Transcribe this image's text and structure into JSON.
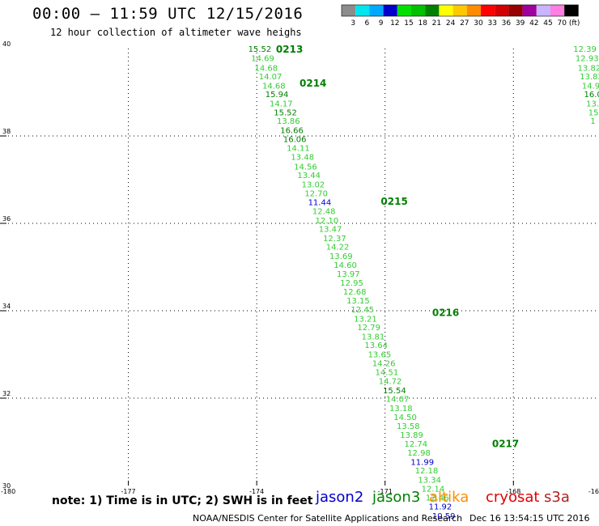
{
  "header": {
    "title": "00:00 – 11:59 UTC 12/15/2016",
    "subtitle": "12 hour collection of altimeter wave heighs"
  },
  "color_scale": {
    "unit": "(ft)",
    "steps": [
      {
        "label": "3",
        "color": "#8c8c8c"
      },
      {
        "label": "6",
        "color": "#00e5ee"
      },
      {
        "label": "9",
        "color": "#00a8ff"
      },
      {
        "label": "12",
        "color": "#0000cd"
      },
      {
        "label": "15",
        "color": "#00e000"
      },
      {
        "label": "18",
        "color": "#00c000"
      },
      {
        "label": "21",
        "color": "#008000"
      },
      {
        "label": "24",
        "color": "#ffff00"
      },
      {
        "label": "27",
        "color": "#ffc800"
      },
      {
        "label": "30",
        "color": "#ff8c00"
      },
      {
        "label": "33",
        "color": "#ff0000"
      },
      {
        "label": "36",
        "color": "#d20000"
      },
      {
        "label": "39",
        "color": "#960000"
      },
      {
        "label": "42",
        "color": "#a000a0"
      },
      {
        "label": "45",
        "color": "#c8b4ff"
      },
      {
        "label": "70",
        "color": "#ff7ee0"
      },
      {
        "label": "",
        "color": "#000000"
      }
    ]
  },
  "map": {
    "lon_range": [
      -180,
      -166
    ],
    "lat_range": [
      30,
      40
    ],
    "lon_ticks": [
      "-180",
      "-177",
      "-174",
      "-171",
      "-168",
      "-16"
    ],
    "lat_ticks": [
      "30",
      "32",
      "34",
      "36",
      "38",
      "40"
    ]
  },
  "colors": {
    "jason2": "#0000cd",
    "jason3": "#008000",
    "jason3_light": "#33cc33",
    "altika": "#ff8c00",
    "cryosat": "#e00000",
    "s3a": "#b22222"
  },
  "track": {
    "time_labels": [
      {
        "text": "0213",
        "lon": -173.55,
        "lat": 39.98
      },
      {
        "text": "0214",
        "lon": -173.0,
        "lat": 39.2
      },
      {
        "text": "0215",
        "lon": -171.1,
        "lat": 36.5
      },
      {
        "text": "0216",
        "lon": -169.9,
        "lat": 33.95
      },
      {
        "text": "0217",
        "lon": -168.5,
        "lat": 30.95
      }
    ],
    "observations": [
      {
        "v": "15.52",
        "lon": -174.2,
        "lat": 39.98,
        "s": "j3d"
      },
      {
        "v": "14.69",
        "lon": -174.13,
        "lat": 39.77,
        "s": "j3"
      },
      {
        "v": "14.68",
        "lon": -174.05,
        "lat": 39.55,
        "s": "j3"
      },
      {
        "v": "14.07",
        "lon": -173.95,
        "lat": 39.35,
        "s": "j3"
      },
      {
        "v": "14.68",
        "lon": -173.87,
        "lat": 39.14,
        "s": "j3"
      },
      {
        "v": "15.94",
        "lon": -173.8,
        "lat": 38.94,
        "s": "j3d"
      },
      {
        "v": "14.17",
        "lon": -173.7,
        "lat": 38.73,
        "s": "j3"
      },
      {
        "v": "15.52",
        "lon": -173.6,
        "lat": 38.53,
        "s": "j3d"
      },
      {
        "v": "13.86",
        "lon": -173.53,
        "lat": 38.33,
        "s": "j3"
      },
      {
        "v": "16.66",
        "lon": -173.45,
        "lat": 38.12,
        "s": "j3d"
      },
      {
        "v": "16.06",
        "lon": -173.38,
        "lat": 37.92,
        "s": "j3d"
      },
      {
        "v": "14.11",
        "lon": -173.3,
        "lat": 37.71,
        "s": "j3"
      },
      {
        "v": "13.48",
        "lon": -173.2,
        "lat": 37.51,
        "s": "j3"
      },
      {
        "v": "14.56",
        "lon": -173.13,
        "lat": 37.29,
        "s": "j3"
      },
      {
        "v": "13.44",
        "lon": -173.05,
        "lat": 37.09,
        "s": "j3"
      },
      {
        "v": "13.02",
        "lon": -172.95,
        "lat": 36.88,
        "s": "j3"
      },
      {
        "v": "12.70",
        "lon": -172.88,
        "lat": 36.68,
        "s": "j3"
      },
      {
        "v": "11.44",
        "lon": -172.8,
        "lat": 36.47,
        "s": "j2"
      },
      {
        "v": "12.48",
        "lon": -172.7,
        "lat": 36.27,
        "s": "j3"
      },
      {
        "v": "12.10",
        "lon": -172.63,
        "lat": 36.06,
        "s": "j3"
      },
      {
        "v": "13.47",
        "lon": -172.55,
        "lat": 35.86,
        "s": "j3"
      },
      {
        "v": "12.37",
        "lon": -172.45,
        "lat": 35.65,
        "s": "j3"
      },
      {
        "v": "14.22",
        "lon": -172.38,
        "lat": 35.45,
        "s": "j3"
      },
      {
        "v": "13.69",
        "lon": -172.3,
        "lat": 35.24,
        "s": "j3"
      },
      {
        "v": "14.60",
        "lon": -172.2,
        "lat": 35.04,
        "s": "j3"
      },
      {
        "v": "13.97",
        "lon": -172.13,
        "lat": 34.83,
        "s": "j3"
      },
      {
        "v": "12.95",
        "lon": -172.05,
        "lat": 34.63,
        "s": "j3"
      },
      {
        "v": "12.68",
        "lon": -171.98,
        "lat": 34.43,
        "s": "j3"
      },
      {
        "v": "13.15",
        "lon": -171.9,
        "lat": 34.22,
        "s": "j3"
      },
      {
        "v": "12.45",
        "lon": -171.8,
        "lat": 34.02,
        "s": "j3"
      },
      {
        "v": "13.21",
        "lon": -171.73,
        "lat": 33.81,
        "s": "j3"
      },
      {
        "v": "12.79",
        "lon": -171.65,
        "lat": 33.61,
        "s": "j3"
      },
      {
        "v": "13.81",
        "lon": -171.55,
        "lat": 33.4,
        "s": "j3"
      },
      {
        "v": "13.64",
        "lon": -171.48,
        "lat": 33.2,
        "s": "j3"
      },
      {
        "v": "13.65",
        "lon": -171.4,
        "lat": 32.99,
        "s": "j3"
      },
      {
        "v": "14.26",
        "lon": -171.3,
        "lat": 32.79,
        "s": "j3"
      },
      {
        "v": "14.51",
        "lon": -171.23,
        "lat": 32.58,
        "s": "j3"
      },
      {
        "v": "14.72",
        "lon": -171.15,
        "lat": 32.38,
        "s": "j3"
      },
      {
        "v": "15.54",
        "lon": -171.05,
        "lat": 32.17,
        "s": "j3d"
      },
      {
        "v": "14.07",
        "lon": -170.98,
        "lat": 31.97,
        "s": "j3"
      },
      {
        "v": "13.18",
        "lon": -170.9,
        "lat": 31.76,
        "s": "j3"
      },
      {
        "v": "14.50",
        "lon": -170.8,
        "lat": 31.56,
        "s": "j3"
      },
      {
        "v": "13.58",
        "lon": -170.73,
        "lat": 31.35,
        "s": "j3"
      },
      {
        "v": "13.89",
        "lon": -170.65,
        "lat": 31.15,
        "s": "j3"
      },
      {
        "v": "12.74",
        "lon": -170.55,
        "lat": 30.94,
        "s": "j3"
      },
      {
        "v": "12.98",
        "lon": -170.48,
        "lat": 30.74,
        "s": "j3"
      },
      {
        "v": "11.99",
        "lon": -170.4,
        "lat": 30.53,
        "s": "j2"
      },
      {
        "v": "12.18",
        "lon": -170.3,
        "lat": 30.33,
        "s": "j3"
      },
      {
        "v": "13.34",
        "lon": -170.23,
        "lat": 30.12,
        "s": "j3"
      },
      {
        "v": "12.14",
        "lon": -170.15,
        "lat": 29.92,
        "s": "j3"
      },
      {
        "v": "12.46",
        "lon": -170.05,
        "lat": 29.71,
        "s": "j3"
      },
      {
        "v": "11.92",
        "lon": -169.98,
        "lat": 29.51,
        "s": "j2"
      },
      {
        "v": "10.59",
        "lon": -169.9,
        "lat": 29.3,
        "s": "j2"
      }
    ],
    "edge_observations": [
      {
        "v": "12.39",
        "lon": -166.6,
        "lat": 39.98,
        "s": "j3"
      },
      {
        "v": "12.93",
        "lon": -166.55,
        "lat": 39.77,
        "s": "j3"
      },
      {
        "v": "13.82",
        "lon": -166.5,
        "lat": 39.55,
        "s": "j3"
      },
      {
        "v": "13.82",
        "lon": -166.45,
        "lat": 39.35,
        "s": "j3"
      },
      {
        "v": "14.9",
        "lon": -166.4,
        "lat": 39.14,
        "s": "j3"
      },
      {
        "v": "16.0",
        "lon": -166.35,
        "lat": 38.94,
        "s": "j3d"
      },
      {
        "v": "13.",
        "lon": -166.3,
        "lat": 38.73,
        "s": "j3"
      },
      {
        "v": "15",
        "lon": -166.25,
        "lat": 38.53,
        "s": "j3"
      },
      {
        "v": "1",
        "lon": -166.2,
        "lat": 38.33,
        "s": "j3"
      }
    ]
  },
  "footer": {
    "note": "note: 1) Time is in UTC; 2) SWH is in feet",
    "missions": [
      {
        "label": "jason2",
        "color": "#0000cd"
      },
      {
        "label": "jason3",
        "color": "#008000"
      },
      {
        "label": "altika",
        "color": "#ff8c00"
      },
      {
        "label": "cryosat",
        "color": "#e00000"
      },
      {
        "label": "s3a",
        "color": "#b22222"
      }
    ],
    "credit": "NOAA/NESDIS Center for Satellite Applications and Research",
    "timestamp": "Dec 16 13:54:15 UTC 2016"
  }
}
